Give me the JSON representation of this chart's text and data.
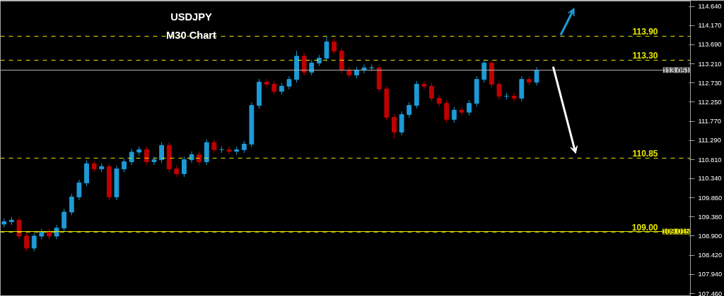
{
  "chart_data": {
    "type": "candlestick",
    "title": "USDJPY",
    "subtitle": "M30 Chart",
    "categories": [
      null,
      null,
      null,
      null,
      null,
      null,
      null,
      null,
      null,
      null,
      null,
      null,
      null,
      null,
      null,
      null,
      null,
      null,
      null,
      null,
      null,
      null,
      null,
      null,
      null,
      null,
      null,
      null,
      null,
      null,
      null,
      null,
      null,
      null,
      null,
      null,
      null,
      null,
      null,
      null,
      null,
      null,
      null,
      null,
      null,
      null,
      null,
      null,
      null,
      null,
      null,
      null,
      null,
      null,
      null,
      null,
      null,
      null,
      null,
      null,
      null,
      null,
      null,
      null,
      null,
      null,
      null,
      null,
      null,
      null,
      null,
      null,
      null,
      null,
      null,
      null,
      null,
      null,
      null,
      null,
      null,
      null,
      null,
      null,
      null,
      null,
      null,
      null,
      null,
      null,
      null,
      null
    ],
    "ohlc": [
      [
        109.2,
        109.34,
        109.12,
        109.26
      ],
      [
        109.26,
        109.38,
        109.18,
        109.3
      ],
      [
        109.3,
        109.38,
        108.82,
        108.9
      ],
      [
        108.9,
        108.98,
        108.52,
        108.6
      ],
      [
        108.6,
        108.98,
        108.52,
        108.9
      ],
      [
        108.9,
        109.08,
        108.82,
        109.0
      ],
      [
        109.0,
        109.08,
        108.82,
        108.9
      ],
      [
        108.9,
        109.18,
        108.82,
        109.1
      ],
      [
        109.1,
        109.58,
        109.02,
        109.5
      ],
      [
        109.5,
        109.96,
        109.42,
        109.88
      ],
      [
        109.88,
        110.31,
        109.8,
        110.23
      ],
      [
        110.23,
        110.79,
        110.15,
        110.71
      ],
      [
        110.71,
        110.79,
        110.5,
        110.58
      ],
      [
        110.58,
        110.72,
        110.5,
        110.64
      ],
      [
        110.64,
        110.72,
        109.8,
        109.88
      ],
      [
        109.88,
        110.66,
        109.8,
        110.58
      ],
      [
        110.58,
        110.84,
        110.5,
        110.76
      ],
      [
        110.76,
        111.08,
        110.68,
        111.0
      ],
      [
        111.0,
        111.14,
        110.92,
        111.06
      ],
      [
        111.06,
        111.14,
        110.68,
        110.76
      ],
      [
        110.76,
        110.89,
        110.68,
        110.81
      ],
      [
        110.81,
        111.25,
        110.73,
        111.17
      ],
      [
        111.17,
        111.25,
        110.5,
        110.58
      ],
      [
        110.58,
        110.66,
        110.38,
        110.46
      ],
      [
        110.46,
        110.89,
        110.38,
        110.81
      ],
      [
        110.81,
        111.02,
        110.73,
        110.94
      ],
      [
        110.94,
        111.02,
        110.68,
        110.76
      ],
      [
        110.76,
        111.32,
        110.68,
        111.24
      ],
      [
        111.24,
        111.32,
        110.98,
        111.06
      ],
      [
        111.06,
        111.14,
        110.98,
        111.06
      ],
      [
        111.06,
        111.14,
        110.94,
        111.02
      ],
      [
        111.02,
        111.14,
        110.94,
        111.06
      ],
      [
        111.06,
        111.28,
        110.98,
        111.2
      ],
      [
        111.2,
        112.25,
        111.12,
        112.17
      ],
      [
        112.17,
        112.83,
        112.09,
        112.75
      ],
      [
        112.75,
        112.83,
        112.62,
        112.7
      ],
      [
        112.7,
        112.78,
        112.44,
        112.52
      ],
      [
        112.52,
        112.73,
        112.44,
        112.65
      ],
      [
        112.65,
        112.9,
        112.57,
        112.82
      ],
      [
        112.82,
        113.53,
        112.74,
        113.4
      ],
      [
        113.4,
        113.48,
        112.92,
        113.0
      ],
      [
        113.0,
        113.31,
        112.92,
        113.23
      ],
      [
        113.23,
        113.43,
        113.15,
        113.35
      ],
      [
        113.35,
        113.9,
        113.27,
        113.76
      ],
      [
        113.76,
        113.84,
        113.45,
        113.53
      ],
      [
        113.53,
        113.61,
        112.97,
        113.05
      ],
      [
        113.05,
        113.13,
        112.85,
        112.93
      ],
      [
        112.93,
        113.13,
        112.85,
        113.05
      ],
      [
        113.05,
        113.19,
        112.97,
        113.11
      ],
      [
        113.11,
        113.19,
        113.03,
        113.11
      ],
      [
        113.11,
        113.19,
        112.5,
        112.58
      ],
      [
        112.58,
        112.66,
        111.79,
        111.87
      ],
      [
        111.87,
        111.95,
        111.34,
        111.5
      ],
      [
        111.5,
        112.02,
        111.42,
        111.94
      ],
      [
        111.94,
        112.25,
        111.86,
        112.17
      ],
      [
        112.17,
        112.78,
        112.09,
        112.7
      ],
      [
        112.7,
        112.78,
        112.57,
        112.65
      ],
      [
        112.65,
        112.73,
        112.27,
        112.35
      ],
      [
        112.35,
        112.43,
        112.14,
        112.22
      ],
      [
        112.22,
        112.3,
        111.74,
        111.82
      ],
      [
        111.82,
        112.13,
        111.74,
        112.05
      ],
      [
        112.05,
        112.13,
        111.92,
        112.0
      ],
      [
        112.0,
        112.3,
        111.92,
        112.22
      ],
      [
        112.22,
        112.9,
        112.14,
        112.82
      ],
      [
        112.82,
        113.32,
        112.74,
        113.23
      ],
      [
        113.23,
        113.31,
        112.62,
        112.7
      ],
      [
        112.7,
        112.78,
        112.32,
        112.4
      ],
      [
        112.4,
        112.48,
        112.32,
        112.4
      ],
      [
        112.4,
        112.48,
        112.27,
        112.35
      ],
      [
        112.35,
        112.9,
        112.27,
        112.82
      ],
      [
        112.82,
        112.9,
        112.67,
        112.75
      ],
      [
        112.75,
        113.13,
        112.67,
        113.05
      ],
      null,
      null,
      null,
      null,
      null,
      null,
      null,
      null,
      null,
      null,
      null,
      null,
      null,
      null,
      null,
      null,
      null,
      null,
      null,
      null
    ],
    "ylim": [
      107.41,
      114.78
    ],
    "yticks": [
      {
        "value": 114.64,
        "label": "114.640"
      },
      {
        "value": 114.17,
        "label": "114.170"
      },
      {
        "value": 113.69,
        "label": "113.690"
      },
      {
        "value": 113.21,
        "label": "113.210"
      },
      {
        "value": 112.73,
        "label": "112.730"
      },
      {
        "value": 112.25,
        "label": "112.250"
      },
      {
        "value": 111.77,
        "label": "111.770"
      },
      {
        "value": 111.29,
        "label": "111.290"
      },
      {
        "value": 110.81,
        "label": "110.810"
      },
      {
        "value": 110.34,
        "label": "110.340"
      },
      {
        "value": 109.86,
        "label": "109.860"
      },
      {
        "value": 109.38,
        "label": "109.380"
      },
      {
        "value": 108.9,
        "label": "108.900"
      },
      {
        "value": 108.42,
        "label": "108.420"
      },
      {
        "value": 107.94,
        "label": "107.940"
      },
      {
        "value": 107.46,
        "label": "107.460"
      }
    ],
    "tick_labels": "y",
    "grid": false,
    "ref_lines": [
      {
        "axis": "y",
        "value": 113.9,
        "label": "113.90",
        "color": "#e6e600",
        "line_style": "dashed"
      },
      {
        "axis": "y",
        "value": 113.3,
        "label": "113.30",
        "color": "#e6e600",
        "line_style": "dashed"
      },
      {
        "axis": "y",
        "value": 110.85,
        "label": "110.85",
        "color": "#e6e600",
        "line_style": "dashed"
      },
      {
        "axis": "y",
        "value": 109.0,
        "label": "109.00",
        "color": "#e6e600",
        "line_style": "dashed"
      },
      {
        "axis": "y",
        "value": 113.051,
        "label": "113.051",
        "color": "#b4b4b4",
        "line_style": "solid"
      },
      {
        "axis": "y",
        "value": 109.015,
        "label": "109.015",
        "color": "#e6e600",
        "line_style": "solid"
      }
    ]
  }
}
